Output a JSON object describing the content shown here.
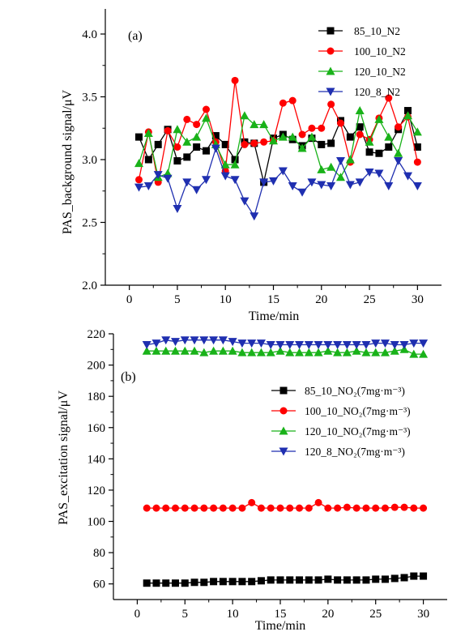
{
  "chart_data": [
    {
      "type": "line",
      "panel_label": "(a)",
      "xlabel": "Time/min",
      "ylabel": "PAS_background signal/μV",
      "xlim": [
        -2.5,
        32.5
      ],
      "ylim": [
        2.0,
        4.2
      ],
      "xticks": [
        0,
        5,
        10,
        15,
        20,
        25,
        30
      ],
      "yticks": [
        2.0,
        2.5,
        3.0,
        3.5,
        4.0
      ],
      "ytick_format": 1,
      "grid": false,
      "legend_position": "top-right",
      "x": [
        1,
        2,
        3,
        4,
        5,
        6,
        7,
        8,
        9,
        10,
        11,
        12,
        13,
        14,
        15,
        16,
        17,
        18,
        19,
        20,
        21,
        22,
        23,
        24,
        25,
        26,
        27,
        28,
        29,
        30
      ],
      "series": [
        {
          "name": "85_10_N2",
          "color": "#000000",
          "marker": "square",
          "values": [
            3.18,
            3.0,
            3.12,
            3.24,
            2.99,
            3.02,
            3.1,
            3.07,
            3.19,
            3.12,
            3.0,
            3.14,
            3.13,
            2.82,
            3.17,
            3.2,
            3.16,
            3.11,
            3.17,
            3.12,
            3.13,
            3.31,
            3.18,
            3.26,
            3.06,
            3.05,
            3.1,
            3.24,
            3.39,
            3.1
          ]
        },
        {
          "name": "100_10_N2",
          "color": "#ff0000",
          "marker": "circle",
          "values": [
            2.84,
            3.22,
            2.82,
            3.23,
            3.1,
            3.32,
            3.28,
            3.4,
            3.14,
            2.91,
            3.63,
            3.12,
            3.13,
            3.14,
            3.15,
            3.45,
            3.47,
            3.2,
            3.25,
            3.25,
            3.44,
            3.29,
            2.98,
            3.2,
            3.16,
            3.33,
            3.49,
            3.26,
            3.34,
            2.98
          ]
        },
        {
          "name": "120_10_N2",
          "color": "#19b219",
          "marker": "triangle-up",
          "values": [
            2.97,
            3.21,
            2.86,
            2.89,
            3.24,
            3.14,
            3.18,
            3.33,
            3.12,
            2.96,
            2.96,
            3.35,
            3.28,
            3.28,
            3.15,
            3.18,
            3.18,
            3.09,
            3.18,
            2.92,
            2.94,
            2.86,
            3.0,
            3.39,
            3.14,
            3.32,
            3.18,
            3.05,
            3.35,
            3.22
          ]
        },
        {
          "name": "120_8_N2",
          "color": "#1f2fb0",
          "marker": "triangle-down",
          "values": [
            2.78,
            2.79,
            2.88,
            2.85,
            2.61,
            2.82,
            2.76,
            2.84,
            3.09,
            2.87,
            2.84,
            2.67,
            2.55,
            2.82,
            2.83,
            2.91,
            2.79,
            2.74,
            2.82,
            2.8,
            2.79,
            2.99,
            2.8,
            2.82,
            2.9,
            2.89,
            2.79,
            2.99,
            2.87,
            2.79
          ]
        }
      ]
    },
    {
      "type": "line",
      "panel_label": "(b)",
      "xlabel": "Time/min",
      "ylabel": "PAS_excitation signal/μV",
      "xlim": [
        -2.5,
        32.5
      ],
      "ylim": [
        50,
        220
      ],
      "xticks": [
        0,
        5,
        10,
        15,
        20,
        25,
        30
      ],
      "yticks": [
        60,
        80,
        100,
        120,
        140,
        160,
        180,
        200,
        220
      ],
      "ytick_format": 0,
      "grid": false,
      "legend_position": "top-right",
      "x": [
        1,
        2,
        3,
        4,
        5,
        6,
        7,
        8,
        9,
        10,
        11,
        12,
        13,
        14,
        15,
        16,
        17,
        18,
        19,
        20,
        21,
        22,
        23,
        24,
        25,
        26,
        27,
        28,
        29,
        30
      ],
      "series": [
        {
          "name": "85_10_NO₂(7mg·m⁻³)",
          "color": "#000000",
          "marker": "square",
          "values": [
            60.5,
            60.5,
            60.5,
            60.5,
            60.5,
            61,
            61,
            61.5,
            61.5,
            61.5,
            61.5,
            61.5,
            62,
            62.5,
            62.5,
            62.5,
            62.5,
            62.5,
            62.5,
            63,
            62.5,
            62.5,
            62.5,
            62.5,
            63,
            63,
            63.5,
            64,
            65,
            65
          ]
        },
        {
          "name": "100_10_NO₂(7mg·m⁻³)",
          "color": "#ff0000",
          "marker": "circle",
          "values": [
            108.5,
            108.5,
            108.5,
            108.5,
            108.5,
            108.5,
            108.5,
            108.5,
            108.5,
            108.5,
            108.5,
            112,
            108.5,
            108.5,
            108.5,
            108.5,
            108.5,
            108.5,
            112,
            108.5,
            108.5,
            109,
            108.5,
            108.5,
            108.5,
            108.5,
            109,
            109,
            108.5,
            108.5
          ]
        },
        {
          "name": "120_10_NO₂(7mg·m⁻³)",
          "color": "#19b219",
          "marker": "triangle-up",
          "values": [
            209,
            209,
            209,
            209,
            209,
            209,
            208,
            209,
            209,
            209,
            208,
            208,
            208,
            208,
            209,
            208,
            208,
            208,
            208,
            209,
            208,
            208,
            209,
            208,
            208,
            208,
            209,
            210,
            207,
            207
          ]
        },
        {
          "name": "120_8_NO₂(7mg·m⁻³)",
          "color": "#1f2fb0",
          "marker": "triangle-down",
          "values": [
            213,
            214,
            216,
            215,
            216,
            216,
            216,
            216,
            216,
            215,
            214,
            214,
            214,
            213,
            213,
            213,
            213,
            213,
            213,
            213,
            213,
            213,
            213,
            213,
            214,
            214,
            213,
            213,
            214,
            214
          ]
        }
      ]
    }
  ]
}
